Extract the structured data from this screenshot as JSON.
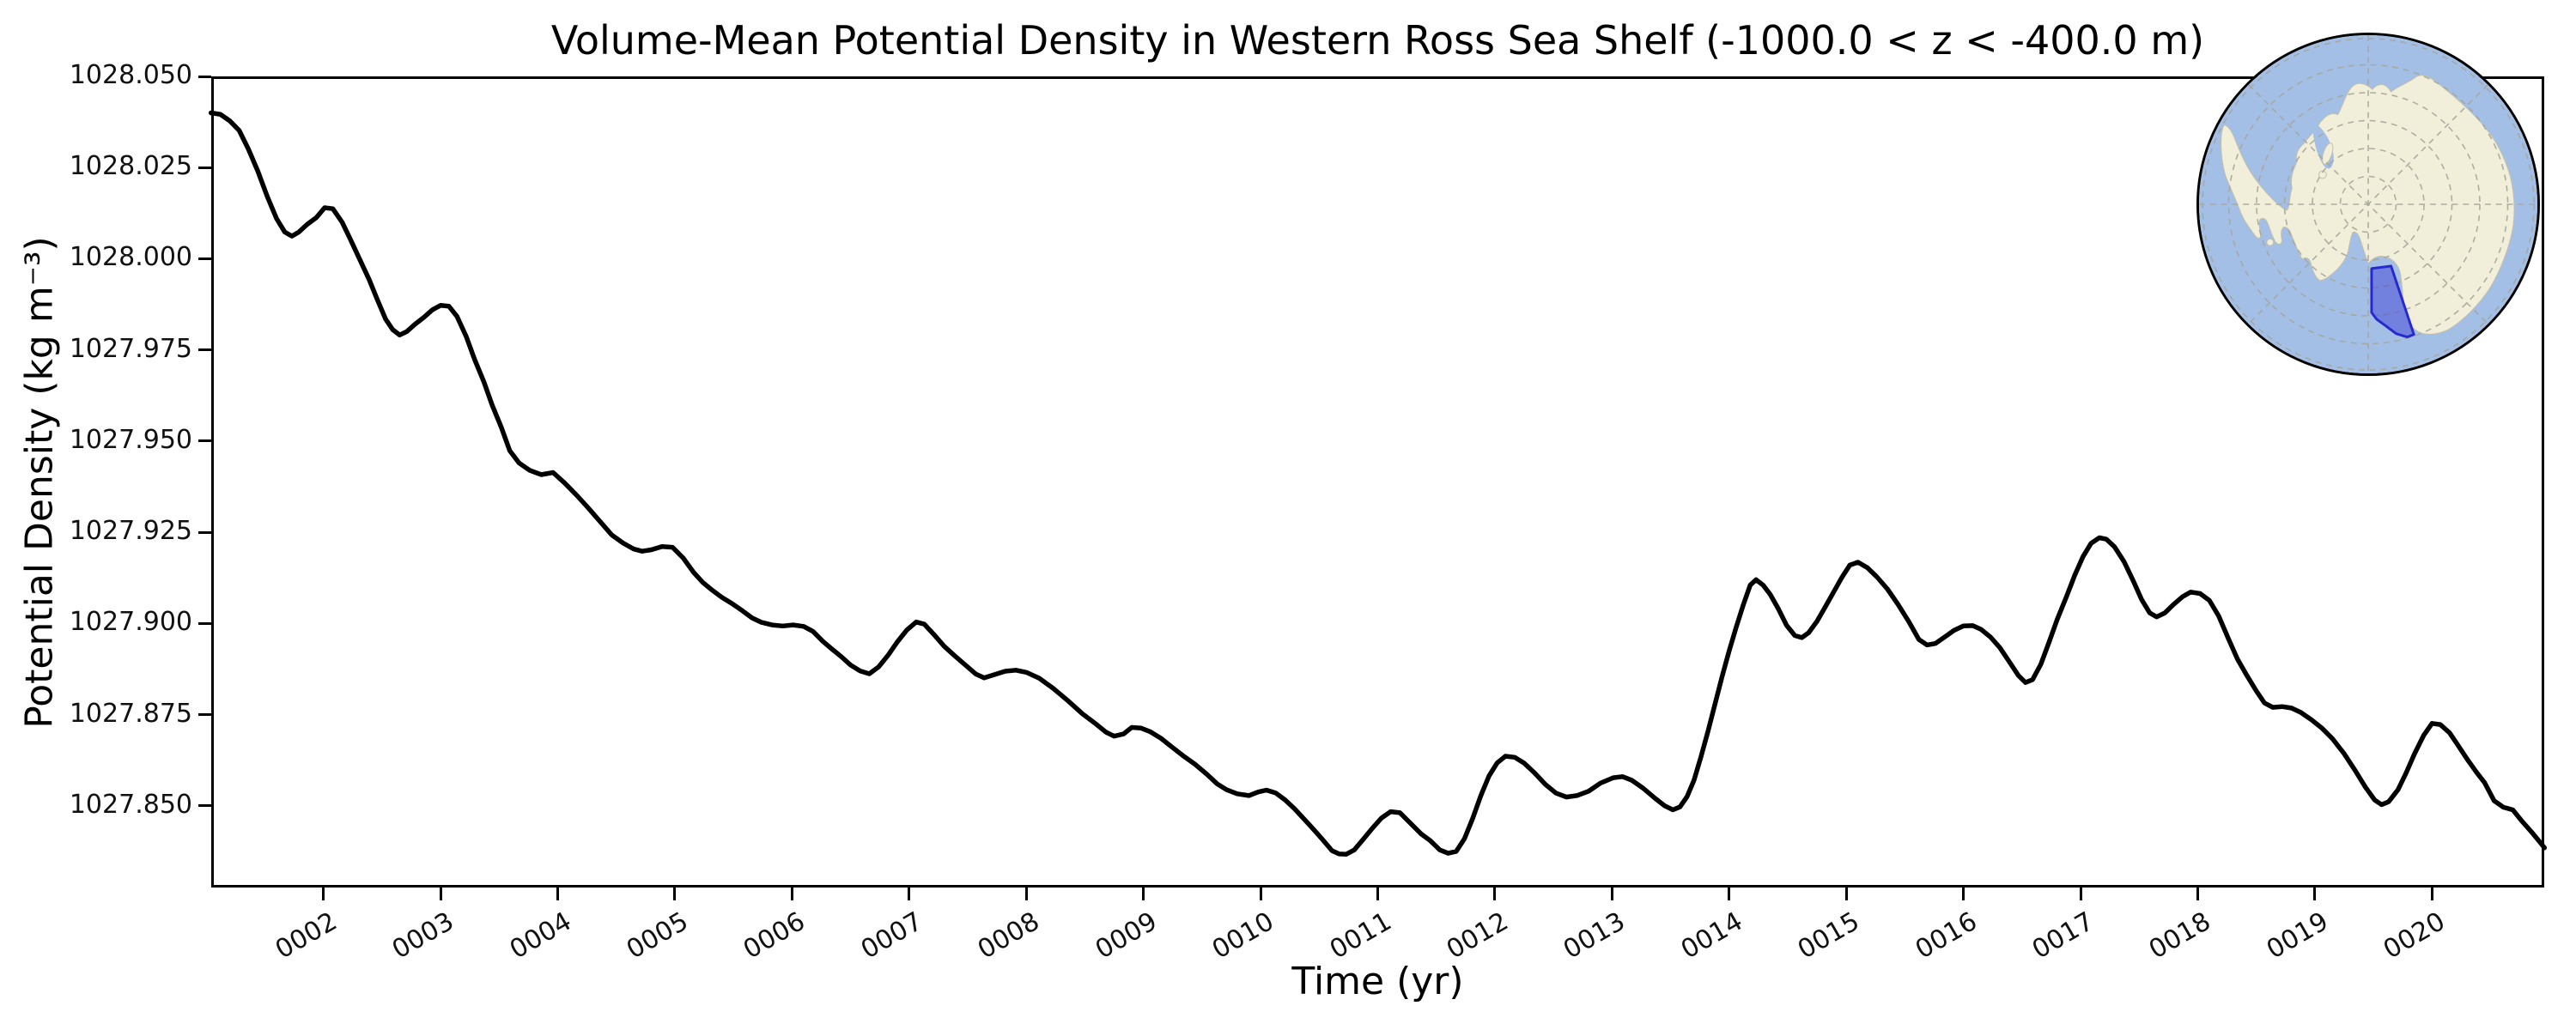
{
  "figure": {
    "title": "Volume-Mean Potential Density in Western Ross Sea Shelf (-1000.0 < z < -400.0 m)",
    "xlabel": "Time (yr)",
    "ylabel": "Potential Density (kg m⁻³)"
  },
  "chart_data": {
    "type": "line",
    "title": "Volume-Mean Potential Density in Western Ross Sea Shelf (-1000.0 < z < -400.0 m)",
    "xlabel": "Time (yr)",
    "ylabel": "Potential Density (kg m-3)",
    "xlim": [
      1.042,
      20.958
    ],
    "ylim": [
      1027.8276,
      1028.05
    ],
    "grid": false,
    "legend": "none",
    "x_ticks": [
      {
        "value": 2,
        "label": "0002"
      },
      {
        "value": 3,
        "label": "0003"
      },
      {
        "value": 4,
        "label": "0004"
      },
      {
        "value": 5,
        "label": "0005"
      },
      {
        "value": 6,
        "label": "0006"
      },
      {
        "value": 7,
        "label": "0007"
      },
      {
        "value": 8,
        "label": "0008"
      },
      {
        "value": 9,
        "label": "0009"
      },
      {
        "value": 10,
        "label": "0010"
      },
      {
        "value": 11,
        "label": "0011"
      },
      {
        "value": 12,
        "label": "0012"
      },
      {
        "value": 13,
        "label": "0013"
      },
      {
        "value": 14,
        "label": "0014"
      },
      {
        "value": 15,
        "label": "0015"
      },
      {
        "value": 16,
        "label": "0016"
      },
      {
        "value": 17,
        "label": "0017"
      },
      {
        "value": 18,
        "label": "0018"
      },
      {
        "value": 19,
        "label": "0019"
      },
      {
        "value": 20,
        "label": "0020"
      }
    ],
    "y_ticks": [
      {
        "value": 1027.85,
        "label": "1027.850"
      },
      {
        "value": 1027.875,
        "label": "1027.875"
      },
      {
        "value": 1027.9,
        "label": "1027.900"
      },
      {
        "value": 1027.925,
        "label": "1027.925"
      },
      {
        "value": 1027.95,
        "label": "1027.950"
      },
      {
        "value": 1027.975,
        "label": "1027.975"
      },
      {
        "value": 1028.0,
        "label": "1028.000"
      },
      {
        "value": 1028.025,
        "label": "1028.025"
      },
      {
        "value": 1028.05,
        "label": "1028.050"
      }
    ],
    "series": [
      {
        "name": "volume-mean potential density",
        "color": "#000000",
        "linewidth": 5.5,
        "x": [
          1.04,
          1.12,
          1.2,
          1.28,
          1.36,
          1.44,
          1.52,
          1.6,
          1.67,
          1.73,
          1.79,
          1.86,
          1.94,
          2.01,
          2.08,
          2.16,
          2.23,
          2.31,
          2.39,
          2.46,
          2.53,
          2.59,
          2.65,
          2.71,
          2.78,
          2.86,
          2.93,
          3.0,
          3.07,
          3.14,
          3.22,
          3.29,
          3.37,
          3.44,
          3.52,
          3.59,
          3.67,
          3.76,
          3.86,
          3.96,
          4.06,
          4.16,
          4.26,
          4.36,
          4.46,
          4.56,
          4.65,
          4.72,
          4.8,
          4.89,
          4.98,
          5.07,
          5.16,
          5.24,
          5.32,
          5.4,
          5.49,
          5.58,
          5.66,
          5.74,
          5.83,
          5.92,
          6.01,
          6.1,
          6.18,
          6.26,
          6.34,
          6.42,
          6.5,
          6.58,
          6.66,
          6.74,
          6.82,
          6.9,
          6.98,
          7.06,
          7.13,
          7.21,
          7.3,
          7.39,
          7.48,
          7.57,
          7.64,
          7.73,
          7.82,
          7.91,
          8.0,
          8.11,
          8.23,
          8.36,
          8.48,
          8.6,
          8.68,
          8.75,
          8.83,
          8.9,
          8.98,
          9.06,
          9.15,
          9.24,
          9.34,
          9.44,
          9.54,
          9.63,
          9.71,
          9.8,
          9.9,
          9.98,
          10.05,
          10.13,
          10.21,
          10.29,
          10.37,
          10.45,
          10.53,
          10.61,
          10.67,
          10.73,
          10.8,
          10.87,
          10.95,
          11.03,
          11.11,
          11.19,
          11.28,
          11.37,
          11.45,
          11.53,
          11.6,
          11.67,
          11.74,
          11.81,
          11.88,
          11.95,
          12.02,
          12.09,
          12.17,
          12.25,
          12.34,
          12.43,
          12.52,
          12.61,
          12.7,
          12.8,
          12.9,
          13.01,
          13.09,
          13.17,
          13.27,
          13.37,
          13.45,
          13.52,
          13.58,
          13.64,
          13.7,
          13.76,
          13.82,
          13.88,
          13.94,
          14.0,
          14.06,
          14.12,
          14.18,
          14.23,
          14.29,
          14.35,
          14.42,
          14.49,
          14.56,
          14.62,
          14.68,
          14.75,
          14.82,
          14.89,
          14.96,
          15.03,
          15.1,
          15.18,
          15.26,
          15.35,
          15.44,
          15.53,
          15.62,
          15.69,
          15.76,
          15.84,
          15.92,
          16.0,
          16.08,
          16.15,
          16.23,
          16.31,
          16.39,
          16.47,
          16.53,
          16.59,
          16.66,
          16.73,
          16.8,
          16.88,
          16.95,
          17.02,
          17.09,
          17.16,
          17.22,
          17.29,
          17.37,
          17.45,
          17.52,
          17.59,
          17.65,
          17.72,
          17.79,
          17.87,
          17.94,
          18.02,
          18.1,
          18.18,
          18.26,
          18.34,
          18.42,
          18.5,
          18.57,
          18.64,
          18.72,
          18.8,
          18.88,
          18.97,
          19.06,
          19.15,
          19.25,
          19.35,
          19.43,
          19.51,
          19.57,
          19.63,
          19.71,
          19.78,
          19.85,
          19.93,
          20.0,
          20.07,
          20.15,
          20.22,
          20.3,
          20.38,
          20.45,
          20.53,
          20.61,
          20.69,
          20.77,
          20.85,
          20.92,
          20.96
        ],
        "y": [
          1028.04,
          1028.0396,
          1028.0378,
          1028.0352,
          1028.03,
          1028.024,
          1028.0171,
          1028.011,
          1028.0073,
          1028.0062,
          1028.0073,
          1028.0094,
          1028.0113,
          1028.014,
          1028.0137,
          1028.01,
          1028.0053,
          1027.9998,
          1027.9943,
          1027.9888,
          1027.9835,
          1027.9806,
          1027.9791,
          1027.98,
          1027.982,
          1027.984,
          1027.986,
          1027.9872,
          1027.987,
          1027.9842,
          1027.9786,
          1027.9724,
          1027.9662,
          1027.9599,
          1027.9536,
          1027.9474,
          1027.944,
          1027.942,
          1027.9408,
          1027.9414,
          1027.9385,
          1027.9352,
          1027.9317,
          1027.928,
          1027.9243,
          1027.922,
          1027.9204,
          1027.9198,
          1027.9202,
          1027.9211,
          1027.9209,
          1027.918,
          1027.914,
          1027.9112,
          1027.9091,
          1027.9072,
          1027.9054,
          1027.9034,
          1027.9015,
          1027.9003,
          1027.8996,
          1027.8993,
          1027.8996,
          1027.8992,
          1027.8978,
          1027.8952,
          1027.893,
          1027.8909,
          1027.8886,
          1027.887,
          1027.8862,
          1027.8881,
          1027.8913,
          1027.895,
          1027.8982,
          1027.9004,
          1027.8998,
          1027.897,
          1027.8937,
          1027.8911,
          1027.8886,
          1027.8861,
          1027.8851,
          1027.886,
          1027.8869,
          1027.8872,
          1027.8866,
          1027.885,
          1027.8822,
          1027.8787,
          1027.8752,
          1027.8723,
          1027.8702,
          1027.8691,
          1027.8697,
          1027.8715,
          1027.8713,
          1027.8703,
          1027.8685,
          1027.8662,
          1027.8637,
          1027.8614,
          1027.8587,
          1027.856,
          1027.8544,
          1027.8533,
          1027.8528,
          1027.8538,
          1027.8543,
          1027.8535,
          1027.8516,
          1027.8492,
          1027.8464,
          1027.8436,
          1027.8407,
          1027.8377,
          1027.8368,
          1027.8367,
          1027.8379,
          1027.8406,
          1027.8437,
          1027.8466,
          1027.8484,
          1027.8481,
          1027.8452,
          1027.8423,
          1027.8404,
          1027.8379,
          1027.837,
          1027.8375,
          1027.841,
          1027.8465,
          1027.8528,
          1027.8582,
          1027.8618,
          1027.8636,
          1027.8633,
          1027.8617,
          1027.859,
          1027.8559,
          1027.8535,
          1027.8524,
          1027.8528,
          1027.854,
          1027.8562,
          1027.8577,
          1027.858,
          1027.857,
          1027.8547,
          1027.852,
          1027.85,
          1027.8489,
          1027.8497,
          1027.8525,
          1027.857,
          1027.8635,
          1027.8705,
          1027.878,
          1027.8855,
          1027.8925,
          1027.899,
          1027.905,
          1027.9105,
          1027.912,
          1027.9105,
          1027.908,
          1027.904,
          1027.8995,
          1027.8967,
          1027.8961,
          1027.8975,
          1027.9006,
          1027.9045,
          1027.9085,
          1027.9125,
          1027.916,
          1027.9168,
          1027.9153,
          1027.9128,
          1027.9095,
          1027.9053,
          1027.9007,
          1027.8956,
          1027.8941,
          1027.8945,
          1027.8963,
          1027.8981,
          1027.8993,
          1027.8994,
          1027.8984,
          1027.8963,
          1027.8934,
          1027.8896,
          1027.8857,
          1027.8838,
          1027.8846,
          1027.8888,
          1027.8948,
          1027.9011,
          1027.9074,
          1027.9132,
          1027.9183,
          1027.922,
          1027.9235,
          1027.9231,
          1027.921,
          1027.917,
          1027.9117,
          1027.9066,
          1027.9029,
          1027.9018,
          1027.9029,
          1027.9051,
          1027.9073,
          1027.9086,
          1027.9082,
          1027.9063,
          1027.902,
          1027.896,
          1027.8902,
          1027.8857,
          1027.8815,
          1027.8782,
          1027.877,
          1027.8772,
          1027.8768,
          1027.8756,
          1027.8736,
          1027.8713,
          1027.8684,
          1027.8643,
          1027.8594,
          1027.8552,
          1027.8516,
          1027.8503,
          1027.8511,
          1027.8544,
          1027.8591,
          1027.8642,
          1027.8694,
          1027.8726,
          1027.8723,
          1027.87,
          1027.8667,
          1027.8628,
          1027.8592,
          1027.8563,
          1027.8514,
          1027.8496,
          1027.8489,
          1027.8457,
          1027.8428,
          1027.8401,
          1027.8385
        ]
      }
    ],
    "inset_map": {
      "type": "south-polar-stereographic-globe",
      "highlighted_region": "Western Ross Sea Shelf",
      "colors": {
        "ocean": "#a3bfe6",
        "land": "#f1eed9",
        "coast": "#bdb9a4",
        "graticule": "#a6a69c",
        "highlight_fill": "rgba(60,60,214,0.48)",
        "highlight_edge": "#2828d0",
        "border": "#000000"
      }
    }
  }
}
